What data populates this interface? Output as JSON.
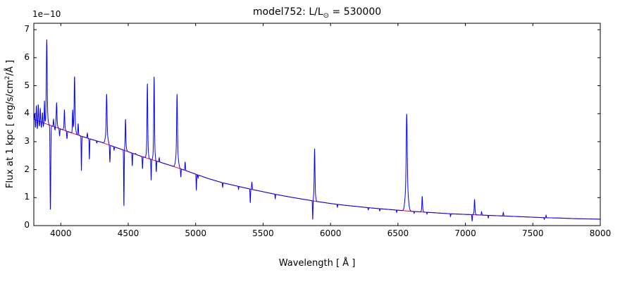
{
  "figure": {
    "title": {
      "prefix": "model752: L/L",
      "sub": "⊙",
      "suffix": " = 530000"
    },
    "xlabel": "Wavelength [ Å ]",
    "ylabel": {
      "prefix": "Flux at 1 kpc [ erg/s/cm",
      "sup": "2",
      "suffix": "/Å ]"
    },
    "offset_text": "1e−10",
    "colors": {
      "spectrum": "#0000ff",
      "continuum": "#ff0000",
      "spine": "#000000",
      "text": "#000000",
      "background": "#ffffff"
    }
  },
  "chart_data": {
    "type": "line",
    "title": "model752: L/L⊙ = 530000",
    "xlabel": "Wavelength [ Å ]",
    "ylabel": "Flux at 1 kpc [ erg/s/cm²/Å ]",
    "y_offset_factor": "1e-10",
    "xlim": [
      3800,
      8000
    ],
    "ylim": [
      0,
      7.23
    ],
    "xticks": [
      4000,
      4500,
      5000,
      5500,
      6000,
      6500,
      7000,
      7500,
      8000
    ],
    "yticks": [
      0,
      1,
      2,
      3,
      4,
      5,
      6,
      7
    ],
    "grid": false,
    "legend": "none",
    "series": [
      {
        "name": "continuum_fit",
        "role": "smooth red continuum model",
        "points": [
          [
            3800,
            3.8
          ],
          [
            3900,
            3.62
          ],
          [
            4000,
            3.45
          ],
          [
            4100,
            3.28
          ],
          [
            4200,
            3.12
          ],
          [
            4300,
            2.98
          ],
          [
            4400,
            2.81
          ],
          [
            4500,
            2.64
          ],
          [
            4600,
            2.47
          ],
          [
            4700,
            2.32
          ],
          [
            4800,
            2.17
          ],
          [
            4900,
            2.01
          ],
          [
            5000,
            1.84
          ],
          [
            5100,
            1.67
          ],
          [
            5200,
            1.53
          ],
          [
            5300,
            1.42
          ],
          [
            5400,
            1.31
          ],
          [
            5500,
            1.21
          ],
          [
            5600,
            1.11
          ],
          [
            5700,
            1.02
          ],
          [
            5800,
            0.94
          ],
          [
            5900,
            0.86
          ],
          [
            6000,
            0.79
          ],
          [
            6100,
            0.73
          ],
          [
            6200,
            0.68
          ],
          [
            6300,
            0.63
          ],
          [
            6400,
            0.59
          ],
          [
            6500,
            0.55
          ],
          [
            6600,
            0.51
          ],
          [
            6700,
            0.48
          ],
          [
            6800,
            0.45
          ],
          [
            6900,
            0.42
          ],
          [
            7000,
            0.4
          ],
          [
            7100,
            0.38
          ],
          [
            7200,
            0.36
          ],
          [
            7300,
            0.34
          ],
          [
            7400,
            0.32
          ],
          [
            7500,
            0.3
          ],
          [
            7600,
            0.28
          ],
          [
            7700,
            0.27
          ],
          [
            7800,
            0.25
          ],
          [
            7900,
            0.24
          ],
          [
            8000,
            0.23
          ]
        ]
      },
      {
        "name": "spectrum",
        "role": "blue spectrum = continuum_fit plus narrow emission/absorption features; flux is the extremum value at each feature center (units 1e-10 erg/s/cm²/Å)",
        "base": "continuum_fit",
        "sample_step_angstrom": 1.2,
        "features": [
          {
            "center": 3806,
            "flux": 4.0,
            "width": 3
          },
          {
            "center": 3812,
            "flux": 3.5,
            "width": 2.5
          },
          {
            "center": 3819,
            "flux": 4.3,
            "width": 2.5
          },
          {
            "center": 3826,
            "flux": 3.45,
            "width": 2.5
          },
          {
            "center": 3833,
            "flux": 4.35,
            "width": 2.5
          },
          {
            "center": 3841,
            "flux": 3.55,
            "width": 2.5
          },
          {
            "center": 3848,
            "flux": 4.2,
            "width": 2.5
          },
          {
            "center": 3856,
            "flux": 3.5,
            "width": 2.5
          },
          {
            "center": 3864,
            "flux": 4.05,
            "width": 2.5
          },
          {
            "center": 3871,
            "flux": 3.55,
            "width": 2.5
          },
          {
            "center": 3879,
            "flux": 4.45,
            "width": 2.5
          },
          {
            "center": 3887,
            "flux": 3.55,
            "width": 2.5
          },
          {
            "center": 3896,
            "flux": 6.65,
            "width": 4,
            "wing_width": 9,
            "wing_frac": 0.2
          },
          {
            "center": 3923,
            "flux": 0.5,
            "width": 3.5
          },
          {
            "center": 3946,
            "flux": 3.8,
            "width": 3
          },
          {
            "center": 3957,
            "flux": 3.4,
            "width": 3
          },
          {
            "center": 3969,
            "flux": 4.4,
            "width": 3.5,
            "wing_width": 8,
            "wing_frac": 0.2
          },
          {
            "center": 3991,
            "flux": 3.2,
            "width": 3
          },
          {
            "center": 4027,
            "flux": 4.15,
            "width": 3,
            "wing_width": 7,
            "wing_frac": 0.2
          },
          {
            "center": 4046,
            "flux": 3.1,
            "width": 3
          },
          {
            "center": 4088,
            "flux": 4.1,
            "width": 3
          },
          {
            "center": 4102,
            "flux": 5.35,
            "width": 3.5,
            "wing_width": 9,
            "wing_frac": 0.25
          },
          {
            "center": 4129,
            "flux": 3.65,
            "width": 3
          },
          {
            "center": 4153,
            "flux": 1.95,
            "width": 2.5
          },
          {
            "center": 4197,
            "flux": 3.3,
            "width": 3
          },
          {
            "center": 4212,
            "flux": 2.35,
            "width": 2.5
          },
          {
            "center": 4267,
            "flux": 2.95,
            "width": 3
          },
          {
            "center": 4340,
            "flux": 4.7,
            "width": 4,
            "wing_width": 12,
            "wing_frac": 0.25
          },
          {
            "center": 4364,
            "flux": 2.25,
            "width": 3
          },
          {
            "center": 4395,
            "flux": 2.7,
            "width": 3
          },
          {
            "center": 4468,
            "flux": 0.62,
            "width": 2.5
          },
          {
            "center": 4480,
            "flux": 3.82,
            "width": 3,
            "wing_width": 8,
            "wing_frac": 0.2
          },
          {
            "center": 4530,
            "flux": 2.12,
            "width": 2.5
          },
          {
            "center": 4554,
            "flux": 2.58,
            "width": 2.5
          },
          {
            "center": 4606,
            "flux": 2.02,
            "width": 2.5
          },
          {
            "center": 4642,
            "flux": 5.1,
            "width": 3.5,
            "wing_width": 8,
            "wing_frac": 0.2
          },
          {
            "center": 4670,
            "flux": 1.62,
            "width": 2.5
          },
          {
            "center": 4692,
            "flux": 5.35,
            "width": 3.5,
            "wing_width": 8,
            "wing_frac": 0.2
          },
          {
            "center": 4708,
            "flux": 1.9,
            "width": 2.5
          },
          {
            "center": 4730,
            "flux": 2.42,
            "width": 3
          },
          {
            "center": 4862,
            "flux": 4.7,
            "width": 4,
            "wing_width": 12,
            "wing_frac": 0.25
          },
          {
            "center": 4890,
            "flux": 1.72,
            "width": 2.5
          },
          {
            "center": 4922,
            "flux": 2.28,
            "width": 3
          },
          {
            "center": 5005,
            "flux": 1.25,
            "width": 2.5
          },
          {
            "center": 5018,
            "flux": 1.7,
            "width": 3
          },
          {
            "center": 5200,
            "flux": 1.37,
            "width": 2.5
          },
          {
            "center": 5318,
            "flux": 1.3,
            "width": 2.5
          },
          {
            "center": 5405,
            "flux": 0.8,
            "width": 2.5
          },
          {
            "center": 5417,
            "flux": 1.56,
            "width": 3
          },
          {
            "center": 5590,
            "flux": 0.96,
            "width": 2.5
          },
          {
            "center": 5868,
            "flux": 0.18,
            "width": 2.5
          },
          {
            "center": 5882,
            "flux": 2.75,
            "width": 3.5,
            "wing_width": 8,
            "wing_frac": 0.25
          },
          {
            "center": 6051,
            "flux": 0.66,
            "width": 2.5
          },
          {
            "center": 6280,
            "flux": 0.56,
            "width": 2.5
          },
          {
            "center": 6365,
            "flux": 0.52,
            "width": 2.5
          },
          {
            "center": 6490,
            "flux": 0.47,
            "width": 2.5
          },
          {
            "center": 6565,
            "flux": 4.0,
            "width": 5,
            "wing_width": 14,
            "wing_frac": 0.3
          },
          {
            "center": 6620,
            "flux": 0.44,
            "width": 2.5
          },
          {
            "center": 6680,
            "flux": 1.05,
            "width": 3,
            "wing_width": 7,
            "wing_frac": 0.2
          },
          {
            "center": 6715,
            "flux": 0.41,
            "width": 2.5
          },
          {
            "center": 6890,
            "flux": 0.33,
            "width": 2.5
          },
          {
            "center": 7050,
            "flux": 0.15,
            "width": 2.5
          },
          {
            "center": 7068,
            "flux": 0.95,
            "width": 3,
            "wing_width": 7,
            "wing_frac": 0.25
          },
          {
            "center": 7120,
            "flux": 0.5,
            "width": 3
          },
          {
            "center": 7170,
            "flux": 0.27,
            "width": 2.5
          },
          {
            "center": 7281,
            "flux": 0.47,
            "width": 3
          },
          {
            "center": 7585,
            "flux": 0.22,
            "width": 2.5
          },
          {
            "center": 7598,
            "flux": 0.37,
            "width": 2.5
          }
        ]
      }
    ]
  }
}
